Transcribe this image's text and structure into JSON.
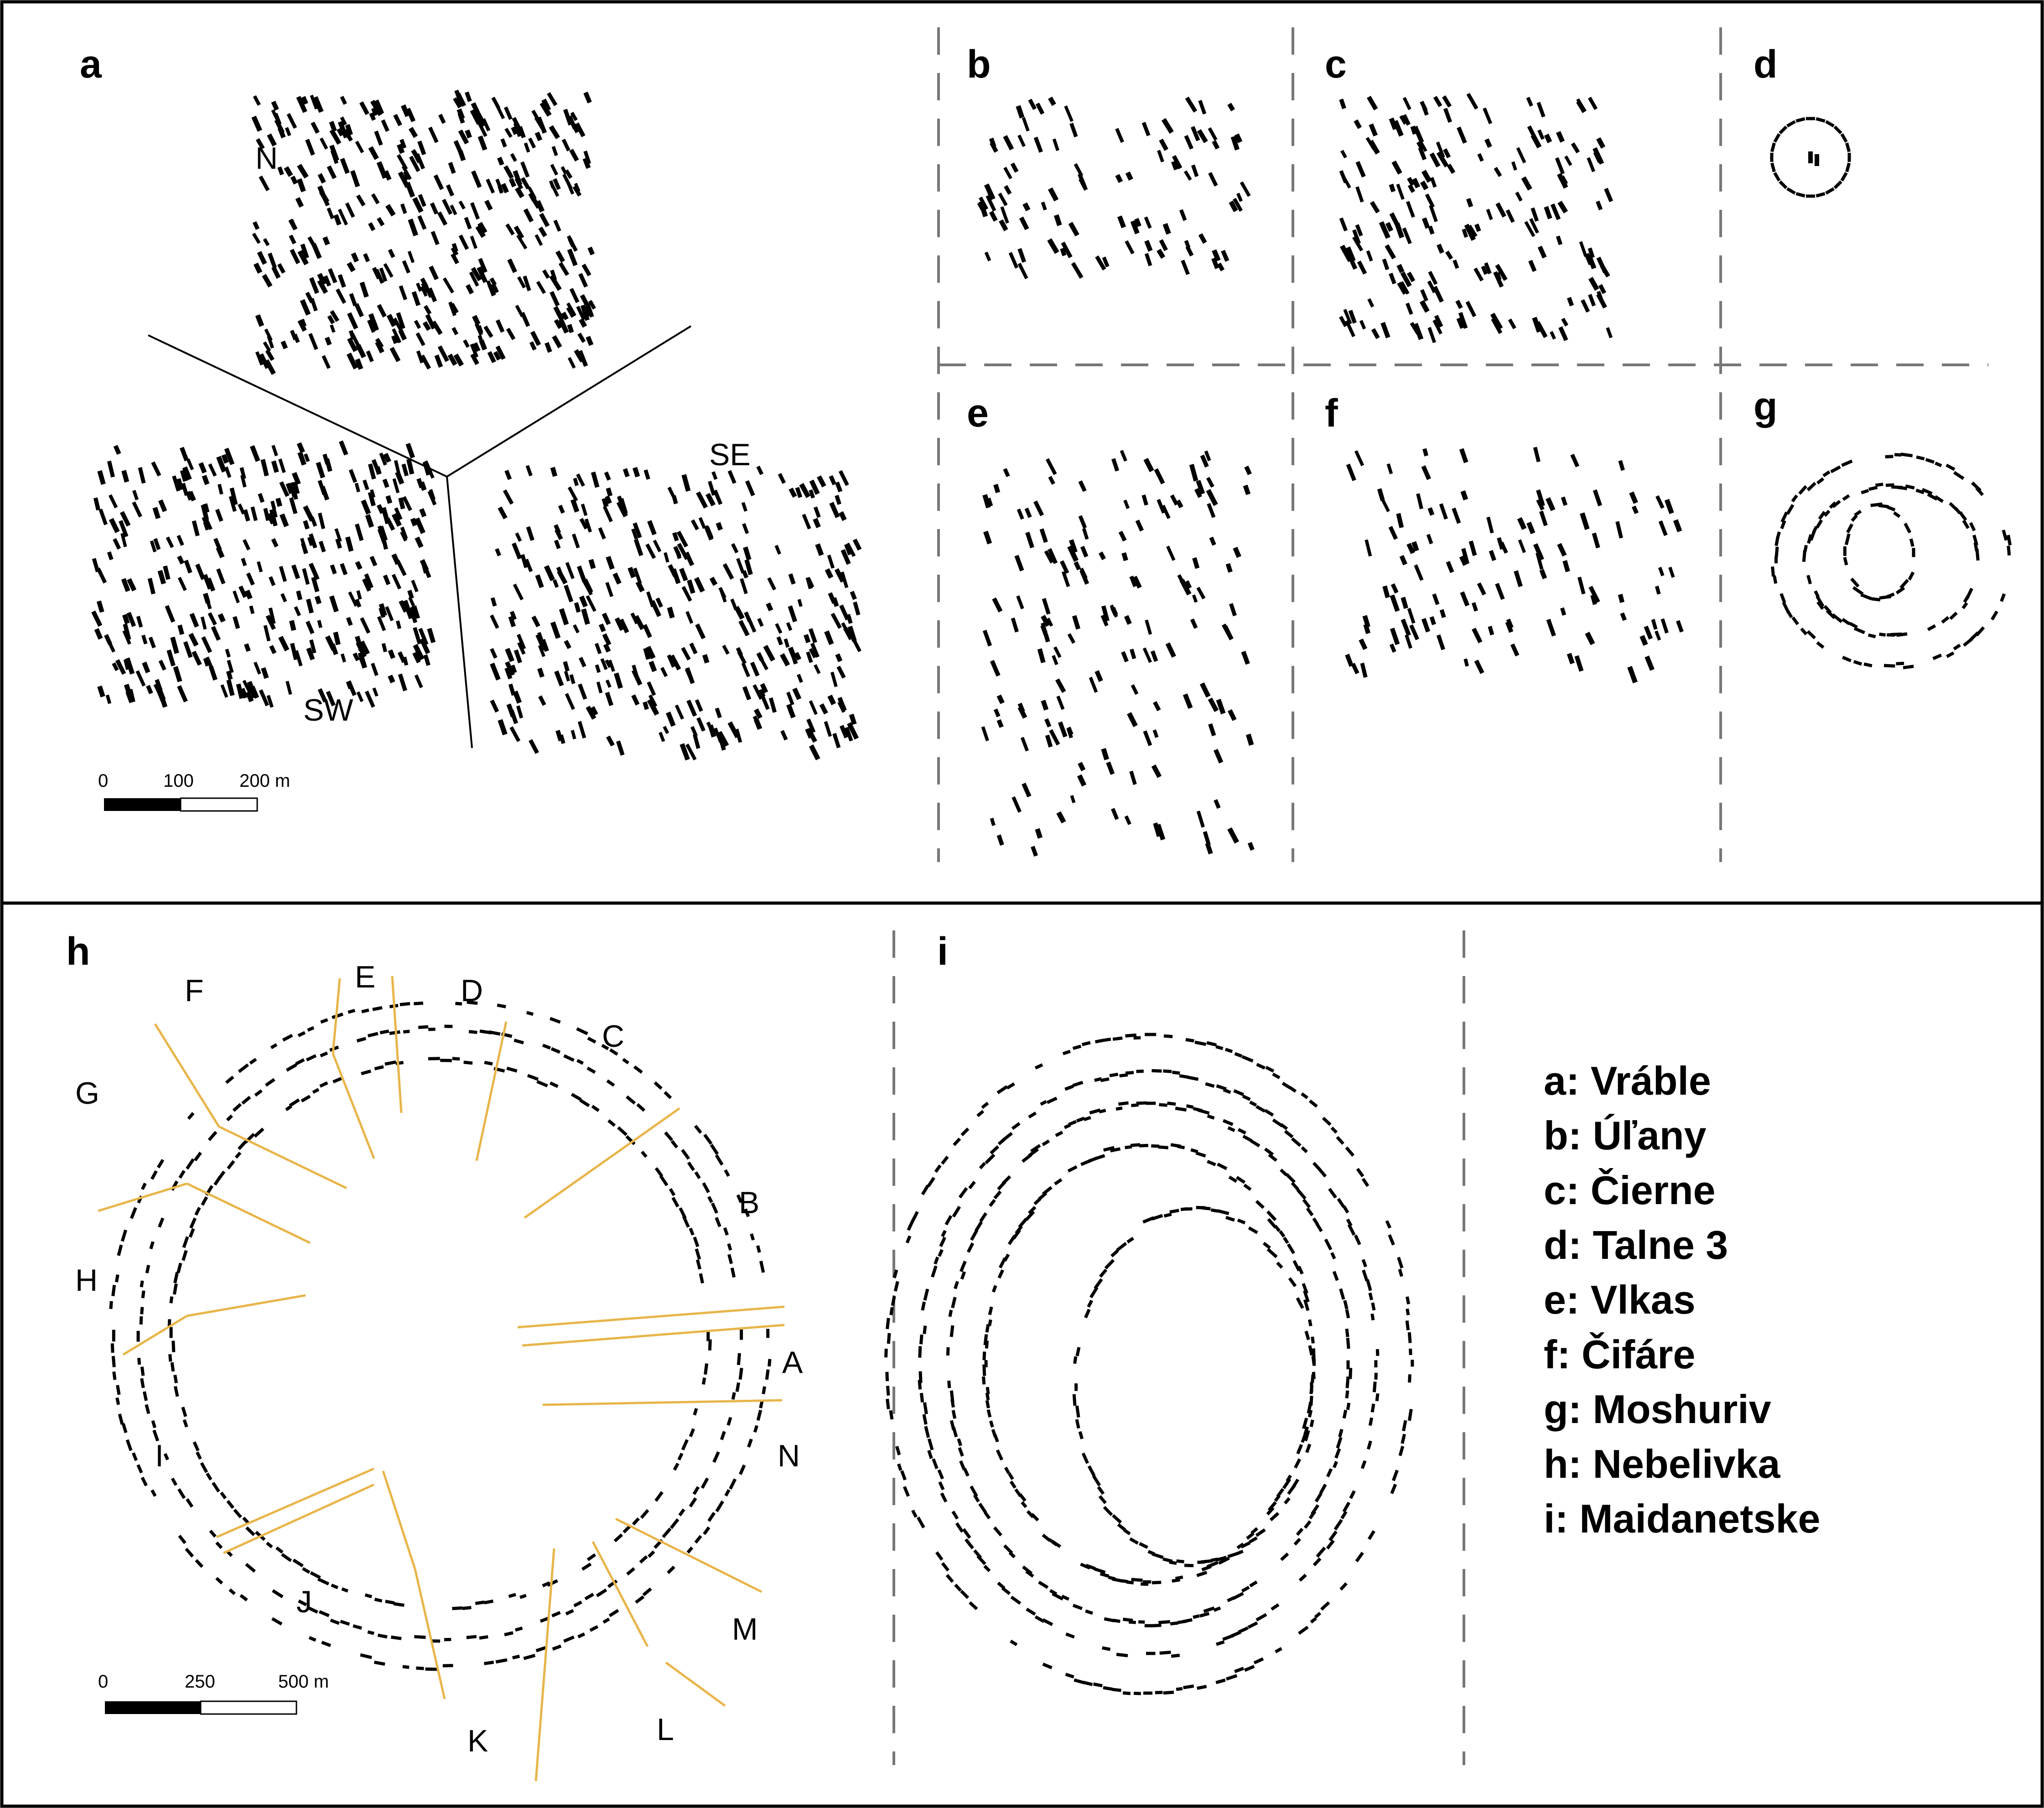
{
  "panels": {
    "a": {
      "label": "a",
      "zones": [
        "N",
        "SE",
        "SW"
      ],
      "scale": {
        "ticks": [
          "0",
          "100",
          "200 m"
        ]
      }
    },
    "b": {
      "label": "b"
    },
    "c": {
      "label": "c"
    },
    "d": {
      "label": "d"
    },
    "e": {
      "label": "e"
    },
    "f": {
      "label": "f"
    },
    "g": {
      "label": "g"
    },
    "h": {
      "label": "h",
      "sectors": [
        "F",
        "E",
        "D",
        "C",
        "G",
        "B",
        "H",
        "A",
        "N",
        "I",
        "J",
        "M",
        "K",
        "L"
      ],
      "scale": {
        "ticks": [
          "0",
          "250",
          "500 m"
        ]
      }
    },
    "i": {
      "label": "i"
    }
  },
  "legend": [
    "a: Vráble",
    "b: Úľany",
    "c: Čierne",
    "d: Talne 3",
    "e: Vlkas",
    "f: Čifáre",
    "g: Moshuriv",
    "h: Nebelivka",
    "i: Maidanetske"
  ],
  "colors": {
    "frame": "#000000",
    "dashed": "#777777",
    "boundary": "#E8B54A",
    "house": "#000000"
  }
}
